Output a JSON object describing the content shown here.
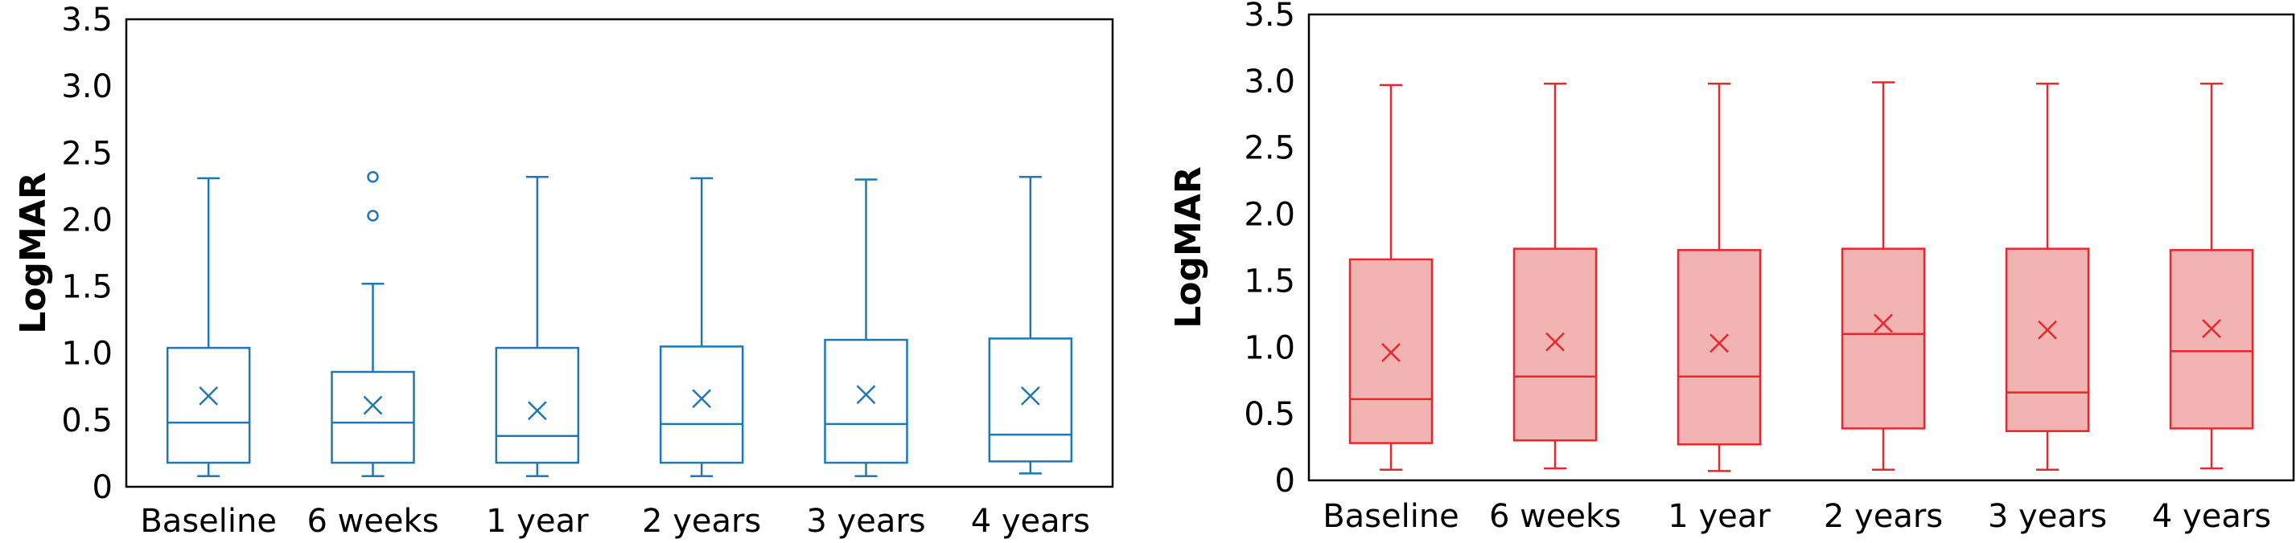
{
  "chart_data": [
    {
      "type": "box",
      "ylabel": "LogMAR",
      "ylim": [
        0,
        3.5
      ],
      "yticks": [
        "0",
        "0.5",
        "1.0",
        "1.5",
        "2.0",
        "2.5",
        "3.0",
        "3.5"
      ],
      "categories": [
        "Baseline",
        "6 weeks",
        "1 year",
        "2 years",
        "3 years",
        "4 years"
      ],
      "stroke_color": "#1f78b4",
      "box_fill": "#ffffff",
      "boxes": [
        {
          "min": 0.08,
          "q1": 0.18,
          "median": 0.48,
          "q3": 1.04,
          "max": 2.31,
          "mean": 0.68,
          "outliers": []
        },
        {
          "min": 0.08,
          "q1": 0.18,
          "median": 0.48,
          "q3": 0.86,
          "max": 1.52,
          "mean": 0.61,
          "outliers": [
            2.03,
            2.32
          ]
        },
        {
          "min": 0.08,
          "q1": 0.18,
          "median": 0.38,
          "q3": 1.04,
          "max": 2.32,
          "mean": 0.57,
          "outliers": []
        },
        {
          "min": 0.08,
          "q1": 0.18,
          "median": 0.47,
          "q3": 1.05,
          "max": 2.31,
          "mean": 0.66,
          "outliers": []
        },
        {
          "min": 0.08,
          "q1": 0.18,
          "median": 0.47,
          "q3": 1.1,
          "max": 2.3,
          "mean": 0.69,
          "outliers": []
        },
        {
          "min": 0.1,
          "q1": 0.19,
          "median": 0.39,
          "q3": 1.11,
          "max": 2.32,
          "mean": 0.68,
          "outliers": []
        }
      ]
    },
    {
      "type": "box",
      "ylabel": "LogMAR",
      "ylim": [
        0,
        3.5
      ],
      "yticks": [
        "0",
        "0.5",
        "1.0",
        "1.5",
        "2.0",
        "2.5",
        "3.0",
        "3.5"
      ],
      "categories": [
        "Baseline",
        "6 weeks",
        "1 year",
        "2 years",
        "3 years",
        "4 years"
      ],
      "stroke_color": "#e8262b",
      "box_fill": "#f2b3b3",
      "boxes": [
        {
          "min": 0.08,
          "q1": 0.28,
          "median": 0.61,
          "q3": 1.66,
          "max": 2.97,
          "mean": 0.96,
          "outliers": []
        },
        {
          "min": 0.09,
          "q1": 0.3,
          "median": 0.78,
          "q3": 1.74,
          "max": 2.98,
          "mean": 1.04,
          "outliers": []
        },
        {
          "min": 0.07,
          "q1": 0.27,
          "median": 0.78,
          "q3": 1.73,
          "max": 2.98,
          "mean": 1.03,
          "outliers": []
        },
        {
          "min": 0.08,
          "q1": 0.39,
          "median": 1.1,
          "q3": 1.74,
          "max": 2.99,
          "mean": 1.18,
          "outliers": []
        },
        {
          "min": 0.08,
          "q1": 0.37,
          "median": 0.66,
          "q3": 1.74,
          "max": 2.98,
          "mean": 1.13,
          "outliers": []
        },
        {
          "min": 0.09,
          "q1": 0.39,
          "median": 0.97,
          "q3": 1.73,
          "max": 2.98,
          "mean": 1.14,
          "outliers": []
        }
      ]
    }
  ]
}
